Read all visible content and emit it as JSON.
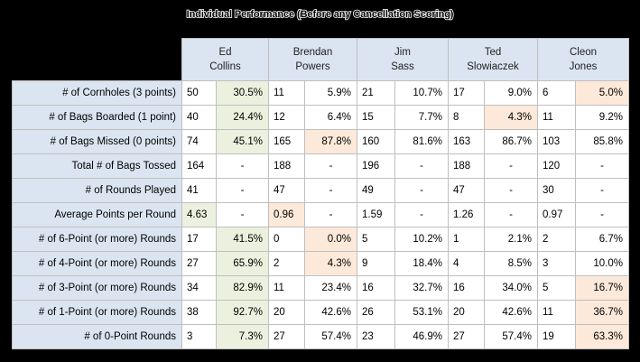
{
  "title": "Individual Performance (Before any Cancellation Scoring)",
  "players": [
    {
      "first": "Ed",
      "last": "Collins"
    },
    {
      "first": "Brendan",
      "last": "Powers"
    },
    {
      "first": "Jim",
      "last": "Sass"
    },
    {
      "first": "Ted",
      "last": "Slowiaczek"
    },
    {
      "first": "Cleon",
      "last": "Jones"
    }
  ],
  "rows": [
    {
      "label": "# of Cornholes (3 points)",
      "cells": [
        [
          "50",
          "30.5%"
        ],
        [
          "11",
          "5.9%"
        ],
        [
          "21",
          "10.7%"
        ],
        [
          "17",
          "9.0%"
        ],
        [
          "6",
          "5.0%"
        ]
      ]
    },
    {
      "label": "# of Bags Boarded (1 point)",
      "cells": [
        [
          "40",
          "24.4%"
        ],
        [
          "12",
          "6.4%"
        ],
        [
          "15",
          "7.7%"
        ],
        [
          "8",
          "4.3%"
        ],
        [
          "11",
          "9.2%"
        ]
      ]
    },
    {
      "label": "# of Bags Missed (0 points)",
      "cells": [
        [
          "74",
          "45.1%"
        ],
        [
          "165",
          "87.8%"
        ],
        [
          "160",
          "81.6%"
        ],
        [
          "163",
          "86.7%"
        ],
        [
          "103",
          "85.8%"
        ]
      ]
    },
    {
      "label": "Total # of Bags Tossed",
      "cells": [
        [
          "164",
          "-"
        ],
        [
          "188",
          "-"
        ],
        [
          "196",
          "-"
        ],
        [
          "188",
          "-"
        ],
        [
          "120",
          "-"
        ]
      ]
    },
    {
      "label": "# of Rounds Played",
      "cells": [
        [
          "41",
          "-"
        ],
        [
          "47",
          "-"
        ],
        [
          "49",
          "-"
        ],
        [
          "47",
          "-"
        ],
        [
          "30",
          "-"
        ]
      ]
    },
    {
      "label": "Average Points per Round",
      "cells": [
        [
          "4.63",
          "-"
        ],
        [
          "0.96",
          "-"
        ],
        [
          "1.59",
          "-"
        ],
        [
          "1.26",
          "-"
        ],
        [
          "0.97",
          "-"
        ]
      ]
    },
    {
      "label": "# of 6-Point (or more) Rounds",
      "cells": [
        [
          "17",
          "41.5%"
        ],
        [
          "0",
          "0.0%"
        ],
        [
          "5",
          "10.2%"
        ],
        [
          "1",
          "2.1%"
        ],
        [
          "2",
          "6.7%"
        ]
      ]
    },
    {
      "label": "# of 4-Point (or more) Rounds",
      "cells": [
        [
          "27",
          "65.9%"
        ],
        [
          "2",
          "4.3%"
        ],
        [
          "9",
          "18.4%"
        ],
        [
          "4",
          "8.5%"
        ],
        [
          "3",
          "10.0%"
        ]
      ]
    },
    {
      "label": "# of 3-Point (or more) Rounds",
      "cells": [
        [
          "34",
          "82.9%"
        ],
        [
          "11",
          "23.4%"
        ],
        [
          "16",
          "32.7%"
        ],
        [
          "16",
          "34.0%"
        ],
        [
          "5",
          "16.7%"
        ]
      ]
    },
    {
      "label": "# of 1-Point (or more) Rounds",
      "cells": [
        [
          "38",
          "92.7%"
        ],
        [
          "20",
          "42.6%"
        ],
        [
          "26",
          "53.1%"
        ],
        [
          "20",
          "42.6%"
        ],
        [
          "11",
          "36.7%"
        ]
      ]
    },
    {
      "label": "# of 0-Point Rounds",
      "cells": [
        [
          "3",
          "7.3%"
        ],
        [
          "27",
          "57.4%"
        ],
        [
          "23",
          "46.9%"
        ],
        [
          "27",
          "57.4%"
        ],
        [
          "19",
          "63.3%"
        ]
      ]
    }
  ],
  "highlights": {
    "colors": {
      "green": "#ebf1de",
      "peach": "#fde9d9",
      "header": "#dbe5f1"
    },
    "green_cells": [
      [
        0,
        0,
        1
      ],
      [
        1,
        0,
        1
      ],
      [
        2,
        0,
        1
      ],
      [
        5,
        0,
        0
      ],
      [
        6,
        0,
        1
      ],
      [
        7,
        0,
        1
      ],
      [
        8,
        0,
        1
      ],
      [
        9,
        0,
        1
      ],
      [
        10,
        0,
        1
      ]
    ],
    "peach_cells": [
      [
        0,
        4,
        1
      ],
      [
        1,
        3,
        1
      ],
      [
        2,
        1,
        1
      ],
      [
        5,
        1,
        0
      ],
      [
        6,
        1,
        1
      ],
      [
        7,
        1,
        1
      ],
      [
        8,
        4,
        1
      ],
      [
        9,
        4,
        1
      ],
      [
        10,
        4,
        1
      ]
    ]
  }
}
